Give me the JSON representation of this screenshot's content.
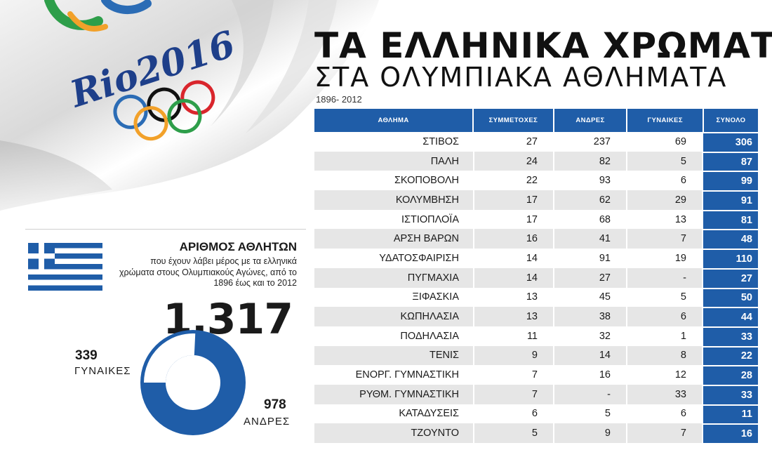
{
  "header": {
    "title": "ΤΑ ΕΛΛΗΝΙΚΑ ΧΡΩΜΑΤΑ",
    "subtitle": "ΣΤΑ ΟΛΥΜΠΙΑΚΑ ΑΘΛΗΜΑΤΑ",
    "years": "1896- 2012"
  },
  "logo": {
    "text": "Rio2016"
  },
  "colors": {
    "accent_blue": "#1f5da8",
    "row_alt_gray": "#e6e6e6",
    "flag_blue": "#1f5da8"
  },
  "athletes": {
    "title": "ΑΡΙΘΜΟΣ ΑΘΛΗΤΩΝ",
    "description": "που έχουν λάβει μέρος με τα ελληνικά χρώματα στους Ολυμπιακούς Αγώνες, από το 1896 έως και το 2012",
    "total": "1.317",
    "women_count": "339",
    "women_label": "ΓΥΝΑΙΚΕΣ",
    "men_count": "978",
    "men_label": "ΑΝΔΡΕΣ"
  },
  "chart_data": [
    {
      "type": "table",
      "columns": [
        "ΑΘΛΗΜΑ",
        "ΣΥΜΜΕΤΟΧΕΣ",
        "ΑΝΔΡΕΣ",
        "ΓΥΝΑΙΚΕΣ",
        "ΣΥΝΟΛΟ"
      ],
      "rows": [
        [
          "ΣΤΙΒΟΣ",
          "27",
          "237",
          "69",
          "306"
        ],
        [
          "ΠΑΛΗ",
          "24",
          "82",
          "5",
          "87"
        ],
        [
          "ΣΚΟΠΟΒΟΛΗ",
          "22",
          "93",
          "6",
          "99"
        ],
        [
          "ΚΟΛΥΜΒΗΣΗ",
          "17",
          "62",
          "29",
          "91"
        ],
        [
          "ΙΣΤΙΟΠΛΟΪΑ",
          "17",
          "68",
          "13",
          "81"
        ],
        [
          "ΑΡΣΗ ΒΑΡΩΝ",
          "16",
          "41",
          "7",
          "48"
        ],
        [
          "ΥΔΑΤΟΣΦΑΙΡΙΣΗ",
          "14",
          "91",
          "19",
          "110"
        ],
        [
          "ΠΥΓΜΑΧΙΑ",
          "14",
          "27",
          "-",
          "27"
        ],
        [
          "ΞΙΦΑΣΚΙΑ",
          "13",
          "45",
          "5",
          "50"
        ],
        [
          "ΚΩΠΗΛΑΣΙΑ",
          "13",
          "38",
          "6",
          "44"
        ],
        [
          "ΠΟΔΗΛΑΣΙΑ",
          "11",
          "32",
          "1",
          "33"
        ],
        [
          "ΤΕΝΙΣ",
          "9",
          "14",
          "8",
          "22"
        ],
        [
          "ΕΝΟΡΓ. ΓΥΜΝΑΣΤΙΚΗ",
          "7",
          "16",
          "12",
          "28"
        ],
        [
          "ΡΥΘΜ. ΓΥΜΝΑΣΤΙΚΗ",
          "7",
          "-",
          "33",
          "33"
        ],
        [
          "ΚΑΤΑΔΥΣΕΙΣ",
          "6",
          "5",
          "6",
          "11"
        ],
        [
          "ΤΖΟΥΝΤΟ",
          "5",
          "9",
          "7",
          "16"
        ]
      ]
    },
    {
      "type": "pie",
      "donut": true,
      "categories": [
        "ΓΥΝΑΙΚΕΣ",
        "ΑΝΔΡΕΣ"
      ],
      "values": [
        339,
        978
      ],
      "colors": [
        "#ffffff",
        "#1f5da8"
      ]
    }
  ]
}
